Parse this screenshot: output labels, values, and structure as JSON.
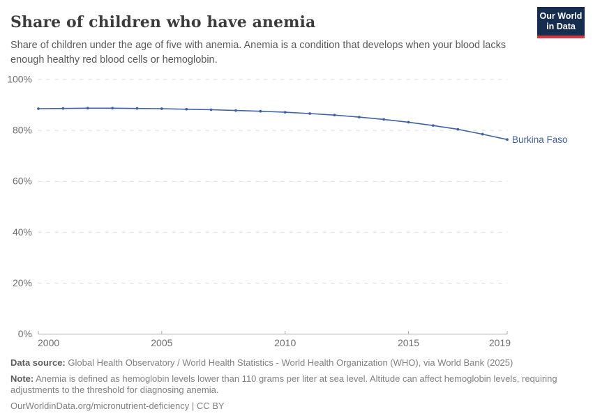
{
  "header": {
    "title": "Share of children who have anemia",
    "subtitle": "Share of children under the age of five with anemia. Anemia is a condition that develops when your blood lacks enough healthy red blood cells or hemoglobin.",
    "logo": {
      "line1": "Our World",
      "line2": "in Data",
      "bg_color": "#152d4f",
      "accent_color": "#d9373e"
    }
  },
  "chart_data": {
    "type": "line",
    "title": "Share of children who have anemia",
    "x": [
      2000,
      2001,
      2002,
      2003,
      2004,
      2005,
      2006,
      2007,
      2008,
      2009,
      2010,
      2011,
      2012,
      2013,
      2014,
      2015,
      2016,
      2017,
      2018,
      2019
    ],
    "series": [
      {
        "name": "Burkina Faso",
        "color": "#3e62a3",
        "values": [
          88.5,
          88.6,
          88.7,
          88.7,
          88.6,
          88.5,
          88.3,
          88.1,
          87.8,
          87.5,
          87.1,
          86.6,
          86.0,
          85.2,
          84.3,
          83.2,
          81.9,
          80.4,
          78.5,
          76.4
        ]
      }
    ],
    "xlim": [
      2000,
      2019
    ],
    "ylim": [
      0,
      100
    ],
    "xticks": [
      2000,
      2005,
      2010,
      2015,
      2019
    ],
    "xtick_labels": [
      "2000",
      "2005",
      "2010",
      "2015",
      "2019"
    ],
    "yticks": [
      0,
      20,
      40,
      60,
      80,
      100
    ],
    "ytick_labels": [
      "0%",
      "20%",
      "40%",
      "60%",
      "80%",
      "100%"
    ],
    "grid": "horizontal-dashed",
    "legend_position": "end-of-line-label",
    "colors": {
      "gridline": "#d9d9d9",
      "axis": "#a8a8a8",
      "tick_text": "#6e6e6e"
    }
  },
  "footer": {
    "data_source_label": "Data source:",
    "data_source": "Global Health Observatory / World Health Statistics - World Health Organization (WHO), via World Bank (2025)",
    "note_label": "Note:",
    "note": "Anemia is defined as hemoglobin levels lower than 110 grams per liter at sea level. Altitude can affect hemoglobin levels, requiring adjustments to the threshold for diagnosing anemia.",
    "license": "OurWorldinData.org/micronutrient-deficiency | CC BY"
  }
}
